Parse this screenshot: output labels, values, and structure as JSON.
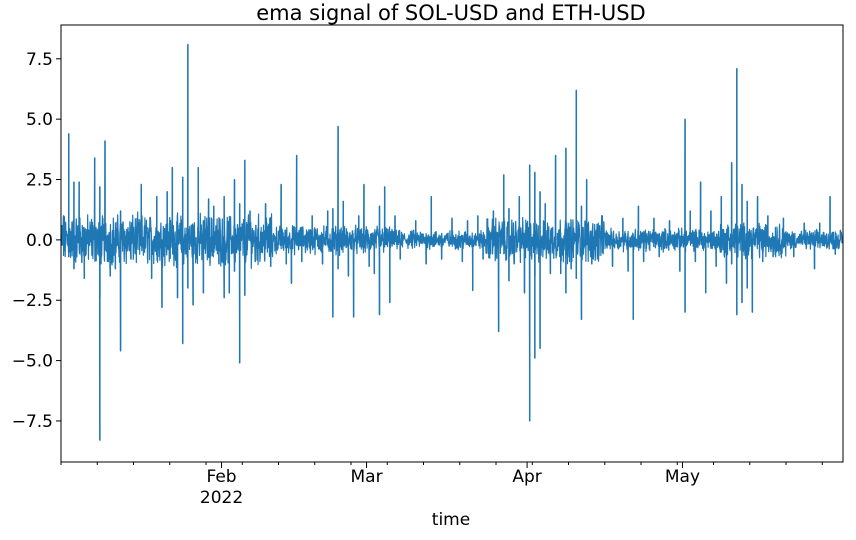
{
  "chart_data": {
    "type": "line",
    "title": "ema signal of SOL-USD and ETH-USD",
    "xlabel": "time",
    "ylabel": "",
    "x_range": [
      "2022-01-01",
      "2022-05-31"
    ],
    "ylim": [
      -9.2,
      8.9
    ],
    "grid": false,
    "color": "#1f77b4",
    "y_ticks": [
      {
        "value": 7.5,
        "label": "7.5"
      },
      {
        "value": 5.0,
        "label": "5.0"
      },
      {
        "value": 2.5,
        "label": "2.5"
      },
      {
        "value": 0.0,
        "label": "0.0"
      },
      {
        "value": -2.5,
        "label": "−2.5"
      },
      {
        "value": -5.0,
        "label": "−5.0"
      },
      {
        "value": -7.5,
        "label": "−7.5"
      }
    ],
    "x_major_ticks": [
      {
        "date": "2022-02-01",
        "label": "Feb",
        "sublabel": "2022"
      },
      {
        "date": "2022-03-01",
        "label": "Mar",
        "sublabel": ""
      },
      {
        "date": "2022-04-01",
        "label": "Apr",
        "sublabel": ""
      },
      {
        "date": "2022-05-01",
        "label": "May",
        "sublabel": ""
      }
    ],
    "series": [
      {
        "spikes": [
          {
            "x": "2022-01-01",
            "y": 1.0
          },
          {
            "x": "2022-01-01",
            "y": 0.7
          },
          {
            "x": "2022-01-02",
            "y": 4.4
          },
          {
            "x": "2022-01-02",
            "y": -0.7
          },
          {
            "x": "2022-01-03",
            "y": -1.2
          },
          {
            "x": "2022-01-03",
            "y": 2.4
          },
          {
            "x": "2022-01-04",
            "y": 2.4
          },
          {
            "x": "2022-01-05",
            "y": -1.6
          },
          {
            "x": "2022-01-07",
            "y": 3.4
          },
          {
            "x": "2022-01-08",
            "y": -8.3
          },
          {
            "x": "2022-01-08",
            "y": -2.4
          },
          {
            "x": "2022-01-08",
            "y": 2.2
          },
          {
            "x": "2022-01-09",
            "y": 4.1
          },
          {
            "x": "2022-01-10",
            "y": -1.5
          },
          {
            "x": "2022-01-11",
            "y": -1.2
          },
          {
            "x": "2022-01-12",
            "y": -4.6
          },
          {
            "x": "2022-01-12",
            "y": 1.2
          },
          {
            "x": "2022-01-14",
            "y": -0.8
          },
          {
            "x": "2022-01-16",
            "y": 2.3
          },
          {
            "x": "2022-01-18",
            "y": -1.6
          },
          {
            "x": "2022-01-19",
            "y": 1.8
          },
          {
            "x": "2022-01-20",
            "y": -2.8
          },
          {
            "x": "2022-01-21",
            "y": 2.0
          },
          {
            "x": "2022-01-22",
            "y": 3.0
          },
          {
            "x": "2022-01-23",
            "y": -2.4
          },
          {
            "x": "2022-01-24",
            "y": -4.3
          },
          {
            "x": "2022-01-24",
            "y": 2.6
          },
          {
            "x": "2022-01-25",
            "y": 8.1
          },
          {
            "x": "2022-01-25",
            "y": -2.0
          },
          {
            "x": "2022-01-26",
            "y": -2.7
          },
          {
            "x": "2022-01-27",
            "y": 3.0
          },
          {
            "x": "2022-01-28",
            "y": -2.2
          },
          {
            "x": "2022-01-29",
            "y": 1.7
          },
          {
            "x": "2022-01-30",
            "y": 1.4
          },
          {
            "x": "2022-01-31",
            "y": -1.0
          },
          {
            "x": "2022-02-01",
            "y": -2.4
          },
          {
            "x": "2022-02-01",
            "y": 1.8
          },
          {
            "x": "2022-02-02",
            "y": -2.2
          },
          {
            "x": "2022-02-03",
            "y": 2.5
          },
          {
            "x": "2022-02-03",
            "y": -1.3
          },
          {
            "x": "2022-02-04",
            "y": -5.1
          },
          {
            "x": "2022-02-04",
            "y": 1.5
          },
          {
            "x": "2022-02-05",
            "y": -2.3
          },
          {
            "x": "2022-02-05",
            "y": 3.3
          },
          {
            "x": "2022-02-06",
            "y": 1.2
          },
          {
            "x": "2022-02-07",
            "y": -0.9
          },
          {
            "x": "2022-02-09",
            "y": 1.5
          },
          {
            "x": "2022-02-10",
            "y": -1.1
          },
          {
            "x": "2022-02-12",
            "y": 2.3
          },
          {
            "x": "2022-02-13",
            "y": -1.0
          },
          {
            "x": "2022-02-14",
            "y": -1.8
          },
          {
            "x": "2022-02-15",
            "y": 3.5
          },
          {
            "x": "2022-02-16",
            "y": -0.9
          },
          {
            "x": "2022-02-18",
            "y": 1.0
          },
          {
            "x": "2022-02-20",
            "y": -1.0
          },
          {
            "x": "2022-02-21",
            "y": 1.2
          },
          {
            "x": "2022-02-22",
            "y": -3.2
          },
          {
            "x": "2022-02-22",
            "y": 1.3
          },
          {
            "x": "2022-02-23",
            "y": 4.7
          },
          {
            "x": "2022-02-23",
            "y": -1.2
          },
          {
            "x": "2022-02-24",
            "y": 1.6
          },
          {
            "x": "2022-02-25",
            "y": -1.5
          },
          {
            "x": "2022-02-26",
            "y": -3.2
          },
          {
            "x": "2022-02-27",
            "y": 1.0
          },
          {
            "x": "2022-02-28",
            "y": 2.3
          },
          {
            "x": "2022-03-01",
            "y": -1.1
          },
          {
            "x": "2022-03-02",
            "y": -1.4
          },
          {
            "x": "2022-03-03",
            "y": -3.1
          },
          {
            "x": "2022-03-03",
            "y": 1.4
          },
          {
            "x": "2022-03-04",
            "y": 2.2
          },
          {
            "x": "2022-03-05",
            "y": -2.6
          },
          {
            "x": "2022-03-06",
            "y": 1.0
          },
          {
            "x": "2022-03-07",
            "y": -0.8
          },
          {
            "x": "2022-03-10",
            "y": 0.8
          },
          {
            "x": "2022-03-12",
            "y": -1.0
          },
          {
            "x": "2022-03-13",
            "y": 1.8
          },
          {
            "x": "2022-03-15",
            "y": -0.8
          },
          {
            "x": "2022-03-17",
            "y": 0.9
          },
          {
            "x": "2022-03-19",
            "y": -0.9
          },
          {
            "x": "2022-03-20",
            "y": 0.8
          },
          {
            "x": "2022-03-21",
            "y": -2.1
          },
          {
            "x": "2022-03-22",
            "y": 1.0
          },
          {
            "x": "2022-03-23",
            "y": -0.8
          },
          {
            "x": "2022-03-25",
            "y": 1.2
          },
          {
            "x": "2022-03-26",
            "y": -3.8
          },
          {
            "x": "2022-03-27",
            "y": 2.7
          },
          {
            "x": "2022-03-28",
            "y": -1.7
          },
          {
            "x": "2022-03-28",
            "y": 1.3
          },
          {
            "x": "2022-03-29",
            "y": -1.0
          },
          {
            "x": "2022-03-30",
            "y": 1.8
          },
          {
            "x": "2022-03-31",
            "y": -2.2
          },
          {
            "x": "2022-04-01",
            "y": -7.5
          },
          {
            "x": "2022-04-01",
            "y": 3.1
          },
          {
            "x": "2022-04-02",
            "y": 2.8
          },
          {
            "x": "2022-04-02",
            "y": -1.5
          },
          {
            "x": "2022-04-02",
            "y": -4.9
          },
          {
            "x": "2022-04-03",
            "y": 2.0
          },
          {
            "x": "2022-04-03",
            "y": -4.5
          },
          {
            "x": "2022-04-04",
            "y": 1.5
          },
          {
            "x": "2022-04-05",
            "y": -1.4
          },
          {
            "x": "2022-04-06",
            "y": 3.5
          },
          {
            "x": "2022-04-07",
            "y": -1.4
          },
          {
            "x": "2022-04-08",
            "y": -2.2
          },
          {
            "x": "2022-04-08",
            "y": 3.8
          },
          {
            "x": "2022-04-09",
            "y": -1.2
          },
          {
            "x": "2022-04-10",
            "y": 6.2
          },
          {
            "x": "2022-04-10",
            "y": -1.6
          },
          {
            "x": "2022-04-11",
            "y": -3.3
          },
          {
            "x": "2022-04-11",
            "y": 1.4
          },
          {
            "x": "2022-04-12",
            "y": 2.5
          },
          {
            "x": "2022-04-13",
            "y": -1.0
          },
          {
            "x": "2022-04-15",
            "y": 1.0
          },
          {
            "x": "2022-04-17",
            "y": -1.1
          },
          {
            "x": "2022-04-19",
            "y": 0.9
          },
          {
            "x": "2022-04-20",
            "y": -1.3
          },
          {
            "x": "2022-04-21",
            "y": -3.3
          },
          {
            "x": "2022-04-22",
            "y": 1.4
          },
          {
            "x": "2022-04-23",
            "y": -0.9
          },
          {
            "x": "2022-04-25",
            "y": 0.9
          },
          {
            "x": "2022-04-26",
            "y": -0.7
          },
          {
            "x": "2022-04-28",
            "y": 0.8
          },
          {
            "x": "2022-04-30",
            "y": -1.3
          },
          {
            "x": "2022-05-01",
            "y": 5.0
          },
          {
            "x": "2022-05-01",
            "y": -3.0
          },
          {
            "x": "2022-05-02",
            "y": 1.2
          },
          {
            "x": "2022-05-03",
            "y": -0.9
          },
          {
            "x": "2022-05-04",
            "y": 2.4
          },
          {
            "x": "2022-05-05",
            "y": -2.2
          },
          {
            "x": "2022-05-06",
            "y": 1.2
          },
          {
            "x": "2022-05-07",
            "y": -1.1
          },
          {
            "x": "2022-05-08",
            "y": 1.8
          },
          {
            "x": "2022-05-09",
            "y": -1.8
          },
          {
            "x": "2022-05-10",
            "y": 3.2
          },
          {
            "x": "2022-05-10",
            "y": -1.0
          },
          {
            "x": "2022-05-11",
            "y": -3.1
          },
          {
            "x": "2022-05-11",
            "y": 7.1
          },
          {
            "x": "2022-05-11",
            "y": 2.4
          },
          {
            "x": "2022-05-12",
            "y": -2.6
          },
          {
            "x": "2022-05-12",
            "y": 2.3
          },
          {
            "x": "2022-05-13",
            "y": -2.0
          },
          {
            "x": "2022-05-13",
            "y": 1.6
          },
          {
            "x": "2022-05-14",
            "y": -3.0
          },
          {
            "x": "2022-05-15",
            "y": 1.8
          },
          {
            "x": "2022-05-16",
            "y": -0.9
          },
          {
            "x": "2022-05-17",
            "y": 1.0
          },
          {
            "x": "2022-05-18",
            "y": -0.7
          },
          {
            "x": "2022-05-20",
            "y": 0.9
          },
          {
            "x": "2022-05-22",
            "y": -0.7
          },
          {
            "x": "2022-05-24",
            "y": 0.7
          },
          {
            "x": "2022-05-26",
            "y": -1.2
          },
          {
            "x": "2022-05-27",
            "y": 0.7
          },
          {
            "x": "2022-05-29",
            "y": 1.8
          },
          {
            "x": "2022-05-30",
            "y": -0.6
          },
          {
            "x": "2022-05-31",
            "y": 0.4
          }
        ],
        "noise_envelope": [
          {
            "from": "2022-01-01",
            "to": "2022-01-20",
            "amplitude": 0.8
          },
          {
            "from": "2022-01-20",
            "to": "2022-02-10",
            "amplitude": 0.8
          },
          {
            "from": "2022-02-10",
            "to": "2022-03-05",
            "amplitude": 0.45
          },
          {
            "from": "2022-03-05",
            "to": "2022-03-23",
            "amplitude": 0.3
          },
          {
            "from": "2022-03-23",
            "to": "2022-04-15",
            "amplitude": 0.7
          },
          {
            "from": "2022-04-15",
            "to": "2022-05-07",
            "amplitude": 0.35
          },
          {
            "from": "2022-05-07",
            "to": "2022-05-20",
            "amplitude": 0.55
          },
          {
            "from": "2022-05-20",
            "to": "2022-05-31",
            "amplitude": 0.3
          }
        ]
      }
    ]
  }
}
